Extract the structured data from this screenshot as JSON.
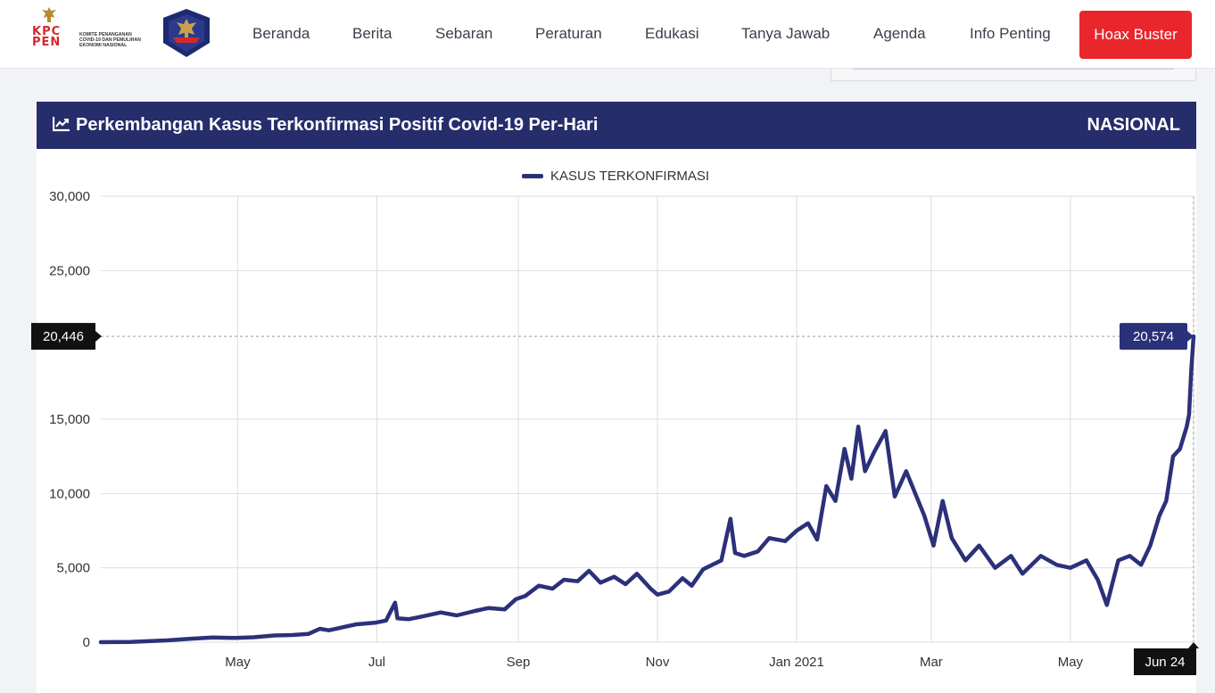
{
  "header": {
    "logo_kpcpen": {
      "letters": [
        "KPC",
        "PEN"
      ],
      "text": [
        "KOMITE PENANGANAN",
        "COVID-19 DAN PEMULIHAN",
        "EKONOMI NASIONAL"
      ]
    },
    "nav": [
      "Beranda",
      "Berita",
      "Sebaran",
      "Peraturan",
      "Edukasi",
      "Tanya Jawab",
      "Agenda",
      "Info Penting"
    ],
    "hoax_button": "Hoax Buster",
    "colors": {
      "hoax": "#e8262c",
      "nav_text": "#3a3f4b"
    }
  },
  "panel": {
    "title": "Perkembangan Kasus Terkonfirmasi Positif Covid-19 Per-Hari",
    "region": "NASIONAL",
    "title_icon": "trend-chart-icon",
    "colors": {
      "header_bg": "#262d6b",
      "line": "#2b3179"
    }
  },
  "chart_data": {
    "type": "line",
    "title": "",
    "xlabel": "",
    "ylabel": "",
    "legend": {
      "position": "top-center",
      "entries": [
        "KASUS TERKONFIRMASI"
      ]
    },
    "grid": true,
    "x_range": [
      "2020-03-02",
      "2021-06-24"
    ],
    "ylim": [
      0,
      30000
    ],
    "y_ticks": [
      0,
      5000,
      10000,
      15000,
      25000,
      30000
    ],
    "y_tick_labels": [
      "0",
      "5,000",
      "10,000",
      "15,000",
      "25,000",
      "30,000"
    ],
    "x_ticks": [
      "2020-05-01",
      "2020-07-01",
      "2020-09-01",
      "2020-11-01",
      "2021-01-01",
      "2021-03-01",
      "2021-05-01"
    ],
    "x_tick_labels": [
      "May",
      "Jul",
      "Sep",
      "Nov",
      "Jan 2021",
      "Mar",
      "May"
    ],
    "crosshair": {
      "y_label": "20,446",
      "x_label": "Jun 24",
      "point_label": "20,574",
      "point_value": 20574,
      "point_date": "2021-06-24"
    },
    "series": [
      {
        "name": "KASUS TERKONFIRMASI",
        "color": "#2b3179",
        "points": [
          [
            "2020-03-02",
            2
          ],
          [
            "2020-03-15",
            20
          ],
          [
            "2020-03-31",
            120
          ],
          [
            "2020-04-10",
            220
          ],
          [
            "2020-04-20",
            320
          ],
          [
            "2020-04-30",
            280
          ],
          [
            "2020-05-08",
            330
          ],
          [
            "2020-05-17",
            450
          ],
          [
            "2020-05-25",
            480
          ],
          [
            "2020-06-01",
            550
          ],
          [
            "2020-06-06",
            900
          ],
          [
            "2020-06-10",
            800
          ],
          [
            "2020-06-16",
            1000
          ],
          [
            "2020-06-22",
            1200
          ],
          [
            "2020-06-30",
            1300
          ],
          [
            "2020-07-05",
            1450
          ],
          [
            "2020-07-09",
            2650
          ],
          [
            "2020-07-10",
            1600
          ],
          [
            "2020-07-15",
            1550
          ],
          [
            "2020-07-20",
            1700
          ],
          [
            "2020-07-29",
            2000
          ],
          [
            "2020-08-05",
            1800
          ],
          [
            "2020-08-13",
            2100
          ],
          [
            "2020-08-19",
            2300
          ],
          [
            "2020-08-26",
            2200
          ],
          [
            "2020-08-31",
            2900
          ],
          [
            "2020-09-04",
            3100
          ],
          [
            "2020-09-10",
            3800
          ],
          [
            "2020-09-16",
            3600
          ],
          [
            "2020-09-21",
            4200
          ],
          [
            "2020-09-27",
            4100
          ],
          [
            "2020-10-02",
            4800
          ],
          [
            "2020-10-07",
            4000
          ],
          [
            "2020-10-13",
            4400
          ],
          [
            "2020-10-18",
            3900
          ],
          [
            "2020-10-23",
            4600
          ],
          [
            "2020-10-29",
            3600
          ],
          [
            "2020-11-01",
            3200
          ],
          [
            "2020-11-06",
            3400
          ],
          [
            "2020-11-12",
            4300
          ],
          [
            "2020-11-16",
            3800
          ],
          [
            "2020-11-21",
            4900
          ],
          [
            "2020-11-29",
            5500
          ],
          [
            "2020-12-03",
            8300
          ],
          [
            "2020-12-05",
            6000
          ],
          [
            "2020-12-09",
            5800
          ],
          [
            "2020-12-15",
            6100
          ],
          [
            "2020-12-20",
            7000
          ],
          [
            "2020-12-27",
            6800
          ],
          [
            "2021-01-01",
            7500
          ],
          [
            "2021-01-06",
            8000
          ],
          [
            "2021-01-10",
            6900
          ],
          [
            "2021-01-14",
            10500
          ],
          [
            "2021-01-18",
            9500
          ],
          [
            "2021-01-22",
            13000
          ],
          [
            "2021-01-25",
            11000
          ],
          [
            "2021-01-28",
            14500
          ],
          [
            "2021-01-31",
            11500
          ],
          [
            "2021-02-04",
            12800
          ],
          [
            "2021-02-09",
            14200
          ],
          [
            "2021-02-13",
            9800
          ],
          [
            "2021-02-18",
            11500
          ],
          [
            "2021-02-22",
            10000
          ],
          [
            "2021-02-26",
            8500
          ],
          [
            "2021-03-02",
            6500
          ],
          [
            "2021-03-06",
            9500
          ],
          [
            "2021-03-10",
            7000
          ],
          [
            "2021-03-16",
            5500
          ],
          [
            "2021-03-22",
            6500
          ],
          [
            "2021-03-29",
            5000
          ],
          [
            "2021-04-05",
            5800
          ],
          [
            "2021-04-10",
            4600
          ],
          [
            "2021-04-18",
            5800
          ],
          [
            "2021-04-25",
            5200
          ],
          [
            "2021-05-01",
            5000
          ],
          [
            "2021-05-08",
            5500
          ],
          [
            "2021-05-13",
            4200
          ],
          [
            "2021-05-17",
            2500
          ],
          [
            "2021-05-22",
            5500
          ],
          [
            "2021-05-27",
            5800
          ],
          [
            "2021-06-01",
            5200
          ],
          [
            "2021-06-05",
            6500
          ],
          [
            "2021-06-09",
            8500
          ],
          [
            "2021-06-12",
            9500
          ],
          [
            "2021-06-15",
            12500
          ],
          [
            "2021-06-18",
            13000
          ],
          [
            "2021-06-21",
            14500
          ],
          [
            "2021-06-22",
            15300
          ],
          [
            "2021-06-23",
            18300
          ],
          [
            "2021-06-24",
            20574
          ]
        ]
      }
    ]
  }
}
